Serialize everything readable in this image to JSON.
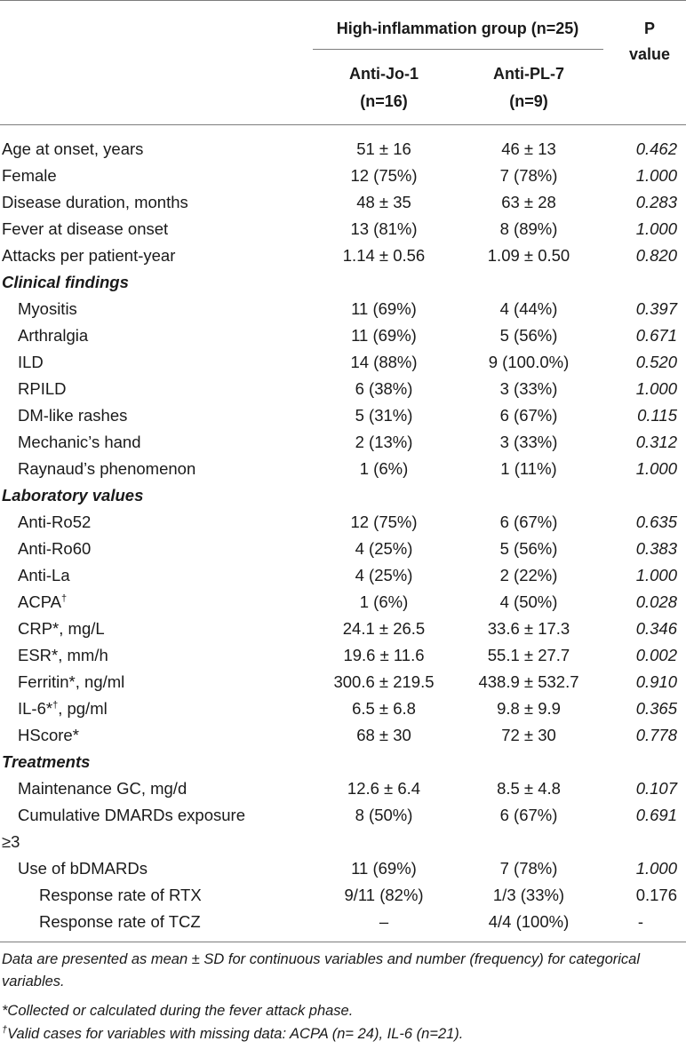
{
  "header": {
    "group_label": "High-inflammation group (n=25)",
    "col_a_line1": "Anti-Jo-1",
    "col_a_line2": "(n=16)",
    "col_b_line1": "Anti-PL-7",
    "col_b_line2": "(n=9)",
    "pvalue_line1": "P",
    "pvalue_line2": "value"
  },
  "rows": [
    {
      "label": "Age at onset, years",
      "a": "51 ± 16",
      "b": "46 ± 13",
      "p": "0.462"
    },
    {
      "label": "Female",
      "a": "12 (75%)",
      "b": "7 (78%)",
      "p": "1.000"
    },
    {
      "label": "Disease duration, months",
      "a": "48 ± 35",
      "b": "63 ± 28",
      "p": "0.283"
    },
    {
      "label": "Fever at disease onset",
      "a": "13 (81%)",
      "b": "8 (89%)",
      "p": "1.000"
    },
    {
      "label": "Attacks per patient-year",
      "a": "1.14 ± 0.56",
      "b": "1.09 ± 0.50",
      "p": "0.820"
    },
    {
      "label": "Clinical findings"
    },
    {
      "label": "Myositis",
      "a": "11 (69%)",
      "b": "4 (44%)",
      "p": "0.397"
    },
    {
      "label": "Arthralgia",
      "a": "11 (69%)",
      "b": "5 (56%)",
      "p": "0.671"
    },
    {
      "label": "ILD",
      "a": "14 (88%)",
      "b": "9 (100.0%)",
      "p": "0.520"
    },
    {
      "label": "RPILD",
      "a": "6 (38%)",
      "b": "3 (33%)",
      "p": "1.000"
    },
    {
      "label": "DM-like rashes",
      "a": "5 (31%)",
      "b": "6 (67%)",
      "p": "0.115"
    },
    {
      "label": "Mechanic’s hand",
      "a": "2 (13%)",
      "b": "3 (33%)",
      "p": "0.312"
    },
    {
      "label": "Raynaud’s phenomenon",
      "a": "1 (6%)",
      "b": "1 (11%)",
      "p": "1.000"
    },
    {
      "label": "Laboratory values"
    },
    {
      "label": "Anti-Ro52",
      "a": "12 (75%)",
      "b": "6 (67%)",
      "p": "0.635"
    },
    {
      "label": "Anti-Ro60",
      "a": "4 (25%)",
      "b": "5 (56%)",
      "p": "0.383"
    },
    {
      "label": "Anti-La",
      "a": "4 (25%)",
      "b": "2 (22%)",
      "p": "1.000"
    },
    {
      "label": "ACPA",
      "sup": "†",
      "a": "1 (6%)",
      "b": "4 (50%)",
      "p": "0.028"
    },
    {
      "label": "CRP*, mg/L",
      "a": "24.1 ± 26.5",
      "b": "33.6 ± 17.3",
      "p": "0.346"
    },
    {
      "label": "ESR*, mm/h",
      "a": "19.6 ± 11.6",
      "b": "55.1 ± 27.7",
      "p": "0.002"
    },
    {
      "label": "Ferritin*, ng/ml",
      "a": "300.6 ± 219.5",
      "b": "438.9 ± 532.7",
      "p": "0.910"
    },
    {
      "label": "IL-6*",
      "sup": "†",
      "label_suffix": ", pg/ml",
      "a": "6.5 ± 6.8",
      "b": "9.8 ± 9.9",
      "p": "0.365"
    },
    {
      "label": "HScore*",
      "a": "68 ± 30",
      "b": "72 ± 30",
      "p": "0.778"
    },
    {
      "label": "Treatments"
    },
    {
      "label": "Maintenance GC, mg/d",
      "a": "12.6 ± 6.4",
      "b": "8.5 ± 4.8",
      "p": "0.107"
    },
    {
      "label": "Cumulative DMARDs exposure",
      "a": "8 (50%)",
      "b": "6 (67%)",
      "p": "0.691"
    },
    {
      "label": "≥3"
    },
    {
      "label": "Use of bDMARDs",
      "a": "11 (69%)",
      "b": "7 (78%)",
      "p": "1.000"
    },
    {
      "label": "Response rate of RTX",
      "a": "9/11 (82%)",
      "b": "1/3 (33%)",
      "p": "0.176"
    },
    {
      "label": "Response rate of TCZ",
      "a": "–",
      "b": "4/4 (100%)",
      "p": "-"
    }
  ],
  "footnotes": {
    "note1": "Data are presented as mean ± SD for continuous variables and number (frequency) for categorical variables.",
    "note2": "*Collected or calculated during the fever attack phase.",
    "note3_sup": "†",
    "note3": "Valid cases for variables with missing data: ACPA (n= 24), IL-6 (n=21)."
  }
}
